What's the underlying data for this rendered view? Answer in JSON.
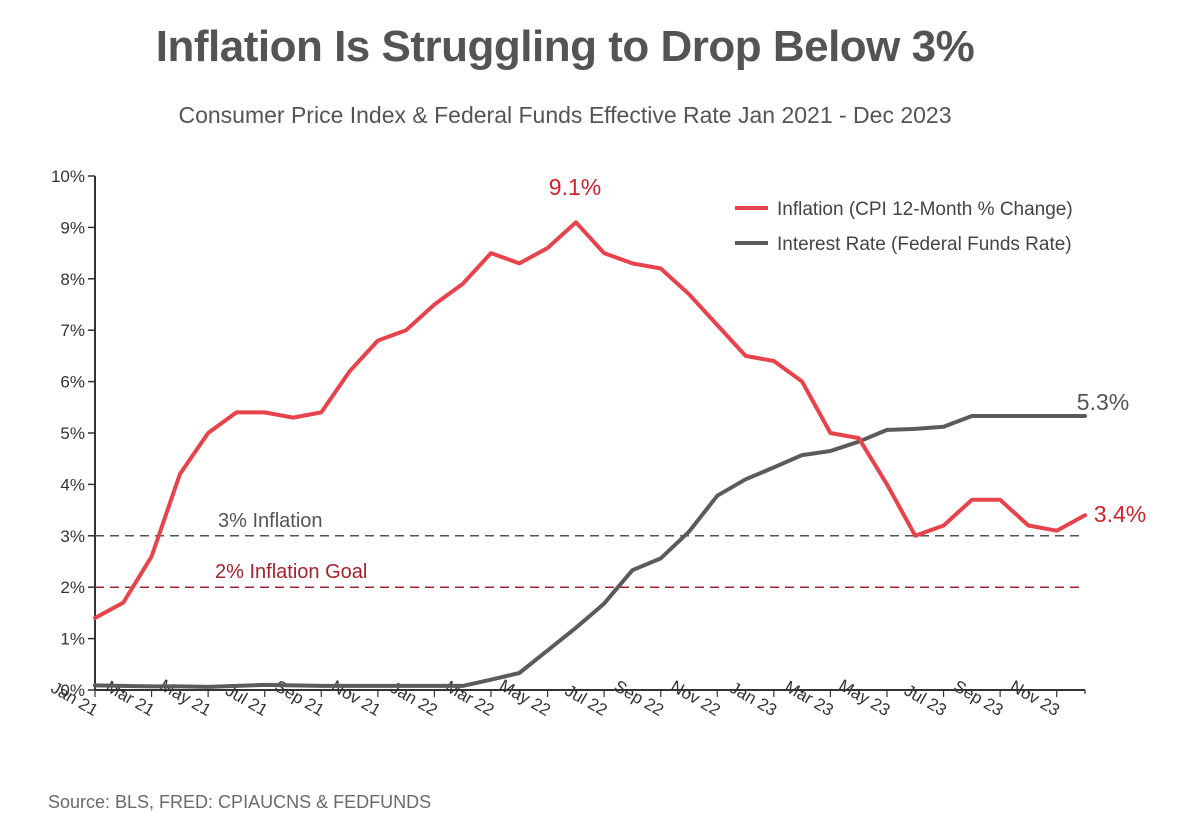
{
  "chart_data": {
    "type": "line",
    "title": "Inflation Is Struggling to Drop Below 3%",
    "subtitle": "Consumer Price Index & Federal Funds Effective Rate Jan 2021 - Dec 2023",
    "source": "Source: BLS, FRED: CPIAUCNS & FEDFUNDS",
    "x": [
      "Jan 21",
      "Feb 21",
      "Mar 21",
      "Apr 21",
      "May 21",
      "Jun 21",
      "Jul 21",
      "Aug 21",
      "Sep 21",
      "Oct 21",
      "Nov 21",
      "Dec 21",
      "Jan 22",
      "Feb 22",
      "Mar 22",
      "Apr 22",
      "May 22",
      "Jun 22",
      "Jul 22",
      "Aug 22",
      "Sep 22",
      "Oct 22",
      "Nov 22",
      "Dec 22",
      "Jan 23",
      "Feb 23",
      "Mar 23",
      "Apr 23",
      "May 23",
      "Jun 23",
      "Jul 23",
      "Aug 23",
      "Sep 23",
      "Oct 23",
      "Nov 23",
      "Dec 23"
    ],
    "x_tick_labels": [
      "Jan 21",
      "Mar 21",
      "May 21",
      "Jul 21",
      "Sep 21",
      "Nov 21",
      "Jan 22",
      "Mar 22",
      "May 22",
      "Jul 22",
      "Sep 22",
      "Nov 22",
      "Jan 23",
      "Mar 23",
      "May 23",
      "Jul 23",
      "Sep 23",
      "Nov 23"
    ],
    "y_ticks": [
      "0%",
      "1%",
      "2%",
      "3%",
      "4%",
      "5%",
      "6%",
      "7%",
      "8%",
      "9%",
      "10%"
    ],
    "ylim": [
      0,
      10
    ],
    "series": [
      {
        "name": "Inflation (CPI 12-Month % Change)",
        "color": "#e8424b",
        "values": [
          1.4,
          1.7,
          2.6,
          4.2,
          5.0,
          5.4,
          5.4,
          5.3,
          5.4,
          6.2,
          6.8,
          7.0,
          7.5,
          7.9,
          8.5,
          8.3,
          8.6,
          9.1,
          8.5,
          8.3,
          8.2,
          7.7,
          7.1,
          6.5,
          6.4,
          6.0,
          5.0,
          4.9,
          4.0,
          3.0,
          3.2,
          3.7,
          3.7,
          3.2,
          3.1,
          3.4
        ]
      },
      {
        "name": "Interest Rate (Federal Funds Rate)",
        "color": "#5c5a5c",
        "values": [
          0.09,
          0.08,
          0.07,
          0.07,
          0.06,
          0.08,
          0.1,
          0.09,
          0.08,
          0.08,
          0.08,
          0.08,
          0.08,
          0.08,
          0.2,
          0.33,
          0.77,
          1.21,
          1.68,
          2.33,
          2.56,
          3.08,
          3.78,
          4.1,
          4.33,
          4.57,
          4.65,
          4.83,
          5.06,
          5.08,
          5.12,
          5.33,
          5.33,
          5.33,
          5.33,
          5.33
        ]
      }
    ],
    "reference_lines": [
      {
        "value": 3,
        "label": "3% Inflation",
        "color": "#555355"
      },
      {
        "value": 2,
        "label": "2% Inflation Goal",
        "color": "#a3222c"
      }
    ],
    "annotations": [
      {
        "text": "9.1%",
        "color": "#d0222c"
      },
      {
        "text": "5.3%",
        "color": "#555355"
      },
      {
        "text": "3.4%",
        "color": "#d0222c"
      }
    ],
    "legend_position": "top-right",
    "grid": false
  }
}
